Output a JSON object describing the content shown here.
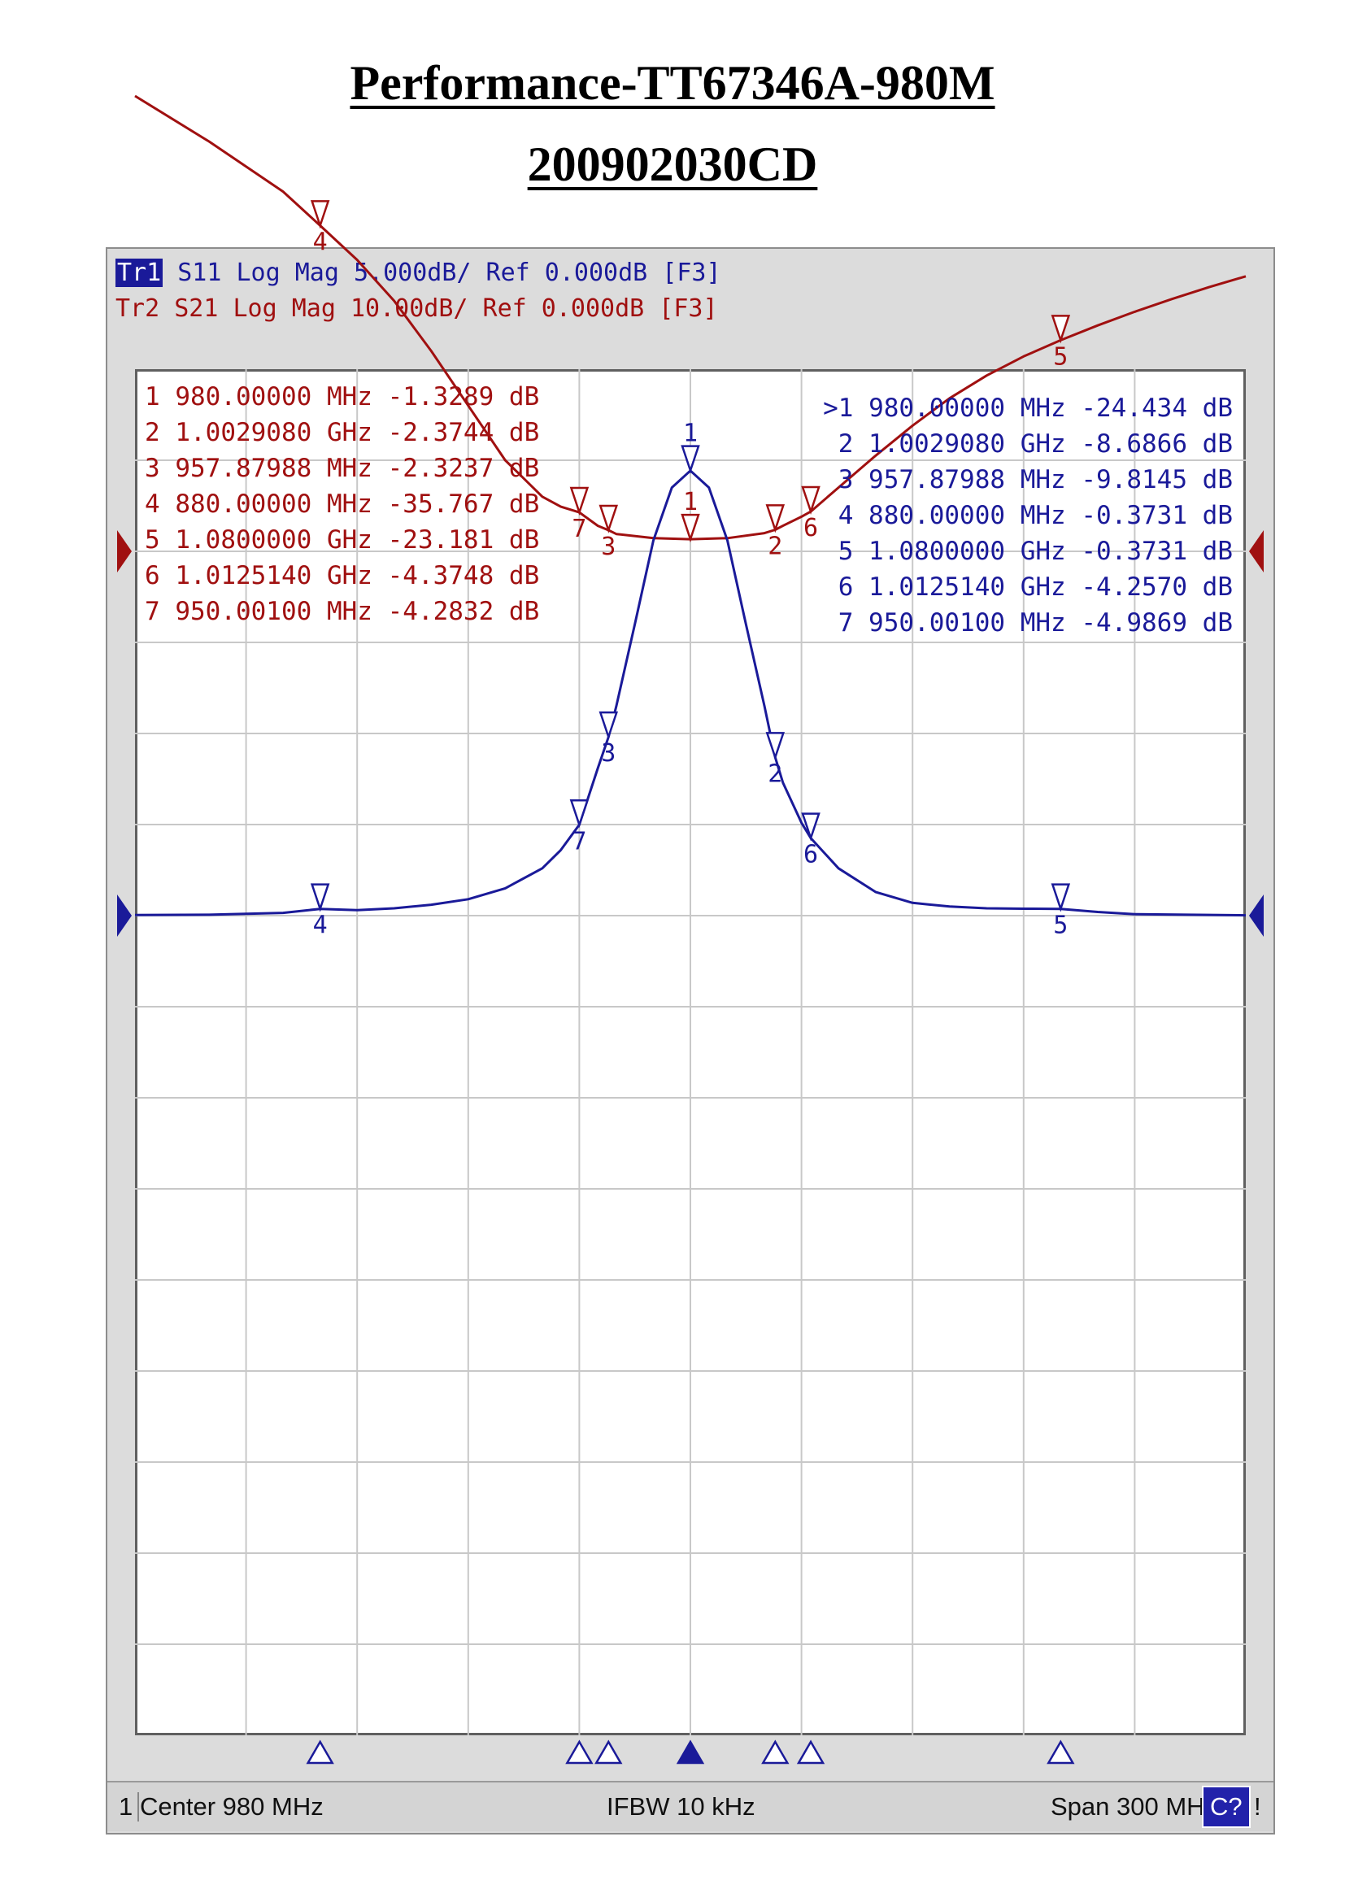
{
  "document": {
    "title": "Performance-TT67346A-980M",
    "subtitle": "200902030CD"
  },
  "traces": {
    "tr1": {
      "badge": "Tr1",
      "text": " S11 Log Mag 5.000dB/ Ref 0.000dB [F3]",
      "color": "#1a1a99"
    },
    "tr2": {
      "text": "Tr2 S21 Log Mag 10.00dB/ Ref 0.000dB [F3]",
      "color": "#a01010"
    }
  },
  "status_bar": {
    "channel": "1",
    "center": "Center 980 MHz",
    "ifbw": "IFBW 10 kHz",
    "span": "Span 300 MHz",
    "cal": "C?",
    "warn": "!"
  },
  "chart_data": {
    "type": "line",
    "x_unit": "MHz",
    "xlim": [
      830,
      1130
    ],
    "grid": true,
    "series": [
      {
        "name": "S21",
        "trace": "Tr2",
        "color": "#a01010",
        "scale_db_per_div": 10,
        "ref_db": 0,
        "x": [
          830,
          850,
          870,
          880,
          890,
          900,
          910,
          920,
          930,
          940,
          945,
          950,
          955,
          957.88,
          960,
          970,
          980,
          990,
          1000,
          1002.9,
          1005,
          1010,
          1012.51,
          1020,
          1030,
          1040,
          1050,
          1060,
          1070,
          1080,
          1090,
          1100,
          1110,
          1120,
          1130
        ],
        "y": [
          -50,
          -45,
          -39.5,
          -35.77,
          -32,
          -27.5,
          -22,
          -16,
          -10,
          -6,
          -4.9,
          -4.28,
          -2.8,
          -2.32,
          -1.9,
          -1.45,
          -1.33,
          -1.45,
          -2,
          -2.37,
          -2.8,
          -3.8,
          -4.37,
          -7,
          -10.5,
          -13.8,
          -16.8,
          -19.3,
          -21.4,
          -23.18,
          -24.8,
          -26.3,
          -27.7,
          -29,
          -30.2
        ]
      },
      {
        "name": "S11",
        "trace": "Tr1",
        "color": "#1a1a99",
        "scale_db_per_div": 5,
        "ref_db": 0,
        "x": [
          830,
          850,
          870,
          880,
          890,
          900,
          910,
          920,
          930,
          940,
          945,
          950,
          955,
          957.88,
          960,
          965,
          970,
          975,
          980,
          985,
          990,
          995,
          1000,
          1002.9,
          1005,
          1010,
          1012.51,
          1020,
          1030,
          1040,
          1050,
          1060,
          1070,
          1080,
          1090,
          1100,
          1130
        ],
        "y": [
          -0.03,
          -0.05,
          -0.15,
          -0.37,
          -0.3,
          -0.4,
          -0.6,
          -0.9,
          -1.5,
          -2.6,
          -3.6,
          -4.99,
          -8.1,
          -9.81,
          -11.5,
          -16,
          -20.6,
          -23.5,
          -24.43,
          -23.5,
          -20.6,
          -16,
          -11.5,
          -8.69,
          -7.3,
          -5.1,
          -4.26,
          -2.6,
          -1.3,
          -0.7,
          -0.5,
          -0.4,
          -0.38,
          -0.37,
          -0.2,
          -0.08,
          -0.02
        ]
      }
    ],
    "markers": {
      "S21": [
        {
          "id": "1",
          "freq": "980.00000 MHz",
          "freq_mhz": 980,
          "value": "-1.3289 dB",
          "db": -1.3289
        },
        {
          "id": "2",
          "freq": "1.0029080 GHz",
          "freq_mhz": 1002.908,
          "value": "-2.3744 dB",
          "db": -2.3744
        },
        {
          "id": "3",
          "freq": "957.87988 MHz",
          "freq_mhz": 957.87988,
          "value": "-2.3237 dB",
          "db": -2.3237
        },
        {
          "id": "4",
          "freq": "880.00000 MHz",
          "freq_mhz": 880,
          "value": "-35.767 dB",
          "db": -35.767
        },
        {
          "id": "5",
          "freq": "1.0800000 GHz",
          "freq_mhz": 1080,
          "value": "-23.181 dB",
          "db": -23.181
        },
        {
          "id": "6",
          "freq": "1.0125140 GHz",
          "freq_mhz": 1012.514,
          "value": "-4.3748 dB",
          "db": -4.3748
        },
        {
          "id": "7",
          "freq": "950.00100 MHz",
          "freq_mhz": 950.001,
          "value": "-4.2832 dB",
          "db": -4.2832
        }
      ],
      "S11": [
        {
          "id": ">1",
          "freq": "980.00000 MHz",
          "freq_mhz": 980,
          "value": "-24.434 dB",
          "db": -24.434
        },
        {
          "id": "2",
          "freq": "1.0029080 GHz",
          "freq_mhz": 1002.908,
          "value": "-8.6866 dB",
          "db": -8.6866
        },
        {
          "id": "3",
          "freq": "957.87988 MHz",
          "freq_mhz": 957.87988,
          "value": "-9.8145 dB",
          "db": -9.8145
        },
        {
          "id": "4",
          "freq": "880.00000 MHz",
          "freq_mhz": 880,
          "value": "-0.3731 dB",
          "db": -0.3731
        },
        {
          "id": "5",
          "freq": "1.0800000 GHz",
          "freq_mhz": 1080,
          "value": "-0.3731 dB",
          "db": -0.3731
        },
        {
          "id": "6",
          "freq": "1.0125140 GHz",
          "freq_mhz": 1012.514,
          "value": "-4.2570 dB",
          "db": -4.257
        },
        {
          "id": "7",
          "freq": "950.00100 MHz",
          "freq_mhz": 950.001,
          "value": "-4.9869 dB",
          "db": -4.9869
        }
      ]
    }
  }
}
